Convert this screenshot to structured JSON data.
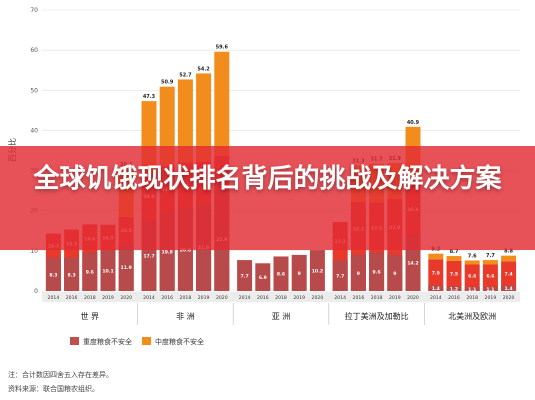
{
  "banner": {
    "title": "全球饥饿现状排名背后的挑战及解决方案"
  },
  "chart_data": {
    "type": "bar",
    "stacked": true,
    "ylabel": "百分比",
    "ylim": [
      0,
      70
    ],
    "yticks": [
      0,
      10,
      20,
      30,
      40,
      50,
      60,
      70
    ],
    "grid": true,
    "years": [
      "2014",
      "2016",
      "2018",
      "2019",
      "2020"
    ],
    "regions": [
      {
        "name": "世 界",
        "severe": [
          8.3,
          8.3,
          9.6,
          10.1,
          11.9
        ],
        "moderate": [
          14.3,
          15.3,
          16.6,
          16.5,
          18.5
        ],
        "total": [
          null,
          null,
          null,
          null,
          30.4
        ]
      },
      {
        "name": "非 洲",
        "severe": [
          17.7,
          19.8,
          20.6,
          21.9,
          25.9
        ],
        "moderate": [
          29.6,
          31.1,
          32.0,
          32.3,
          33.7
        ],
        "total": [
          47.3,
          50.9,
          52.7,
          54.2,
          59.6
        ]
      },
      {
        "name": "亚 洲",
        "severe": [
          7.7,
          6.9,
          8.6,
          9.0,
          10.2
        ],
        "moderate": [
          null,
          null,
          null,
          null,
          null
        ],
        "total": [
          null,
          null,
          null,
          null,
          null
        ]
      },
      {
        "name": "拉丁美洲及加勒比",
        "severe": [
          7.7,
          9.0,
          9.6,
          9.0,
          14.2
        ],
        "moderate": [
          17.2,
          22.2,
          22.1,
          22.9,
          26.6
        ],
        "total": [
          null,
          31.3,
          31.7,
          31.9,
          40.9
        ]
      },
      {
        "name": "北美洲及欧洲",
        "severe": [
          1.4,
          1.2,
          1.1,
          1.1,
          1.4
        ],
        "moderate": [
          7.9,
          7.5,
          6.6,
          6.6,
          7.4
        ],
        "total": [
          9.3,
          8.7,
          7.6,
          7.7,
          8.8
        ]
      }
    ],
    "legend": [
      {
        "label": "重度粮食不安全",
        "color": "#c0504d"
      },
      {
        "label": "中度粮食不安全",
        "color": "#f28c1c"
      }
    ],
    "colors": {
      "severe_dark": "#8e3a3a",
      "moderate": "#f28c1c",
      "grid": "#e0e0e0",
      "strip": "#ececec"
    }
  },
  "notes": {
    "note1": "注：合计数因四舍五入存在差异。",
    "note2": "资料来源：联合国粮农组织。"
  }
}
